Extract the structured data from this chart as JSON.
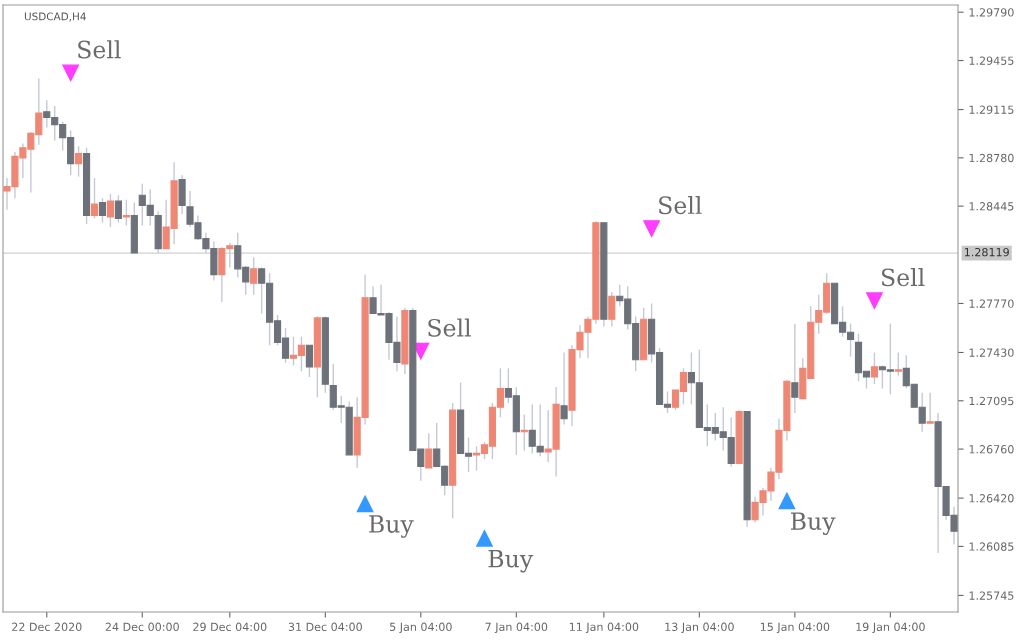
{
  "chart_data": {
    "type": "candlestick",
    "title": "USDCAD,H4",
    "categories": [
      null,
      null,
      null,
      null,
      null,
      "22 Dec 2020",
      null,
      null,
      null,
      null,
      null,
      null,
      null,
      null,
      null,
      null,
      null,
      "24 Dec 00:00",
      null,
      null,
      null,
      null,
      null,
      null,
      null,
      null,
      null,
      null,
      "29 Dec 04:00",
      null,
      null,
      null,
      null,
      null,
      null,
      null,
      null,
      null,
      null,
      null,
      "31 Dec 04:00",
      null,
      null,
      null,
      null,
      null,
      null,
      null,
      null,
      null,
      null,
      null,
      "5 Jan 04:00",
      null,
      null,
      null,
      null,
      null,
      null,
      null,
      null,
      null,
      null,
      null,
      "7 Jan 04:00",
      null,
      null,
      null,
      null,
      null,
      null,
      null,
      null,
      null,
      null,
      "11 Jan 04:00",
      null,
      null,
      null,
      null,
      null,
      null,
      null,
      null,
      null,
      null,
      null,
      "13 Jan 04:00",
      null,
      null,
      null,
      null,
      null,
      null,
      null,
      null,
      null,
      null,
      null,
      "15 Jan 04:00",
      null,
      null,
      null,
      null,
      null,
      null,
      null,
      null,
      null,
      null,
      null,
      "19 Jan 04:00",
      null,
      null,
      null,
      null,
      null,
      null,
      null,
      null
    ],
    "ohlc": [
      [
        1.2855,
        1.2864,
        1.2842,
        1.2858
      ],
      [
        1.2858,
        1.2882,
        1.285,
        1.2879
      ],
      [
        1.2878,
        1.2888,
        1.2864,
        1.2885
      ],
      [
        1.2884,
        1.2896,
        1.2854,
        1.2895
      ],
      [
        1.2894,
        1.2933,
        1.2887,
        1.2909
      ],
      [
        1.291,
        1.2918,
        1.2899,
        1.2906
      ],
      [
        1.2906,
        1.2914,
        1.289,
        1.2901
      ],
      [
        1.2901,
        1.2903,
        1.2883,
        1.2892
      ],
      [
        1.2892,
        1.2897,
        1.2866,
        1.2874
      ],
      [
        1.2874,
        1.2886,
        1.2865,
        1.2881
      ],
      [
        1.2881,
        1.2885,
        1.2832,
        1.2838
      ],
      [
        1.2838,
        1.2864,
        1.2836,
        1.2846
      ],
      [
        1.2847,
        1.285,
        1.2833,
        1.2838
      ],
      [
        1.2837,
        1.2853,
        1.283,
        1.2848
      ],
      [
        1.2848,
        1.2852,
        1.2833,
        1.2836
      ],
      [
        1.2837,
        1.2849,
        1.2831,
        1.2838
      ],
      [
        1.2838,
        1.2847,
        1.2812,
        1.2812
      ],
      [
        1.2852,
        1.286,
        1.2831,
        1.2845
      ],
      [
        1.2845,
        1.2856,
        1.2831,
        1.2838
      ],
      [
        1.2838,
        1.2841,
        1.2812,
        1.2815
      ],
      [
        1.2815,
        1.2849,
        1.2815,
        1.283
      ],
      [
        1.2829,
        1.2875,
        1.2818,
        1.2862
      ],
      [
        1.2863,
        1.2866,
        1.2839,
        1.2845
      ],
      [
        1.2844,
        1.2855,
        1.283,
        1.2832
      ],
      [
        1.2833,
        1.2838,
        1.2821,
        1.2822
      ],
      [
        1.2822,
        1.2826,
        1.2812,
        1.2815
      ],
      [
        1.2815,
        1.282,
        1.2793,
        1.2797
      ],
      [
        1.2797,
        1.2816,
        1.2778,
        1.2815
      ],
      [
        1.2815,
        1.2819,
        1.2802,
        1.2817
      ],
      [
        1.2817,
        1.2826,
        1.2795,
        1.2801
      ],
      [
        1.2802,
        1.2803,
        1.2783,
        1.2792
      ],
      [
        1.2791,
        1.2809,
        1.2783,
        1.2801
      ],
      [
        1.2801,
        1.2802,
        1.277,
        1.2791
      ],
      [
        1.2791,
        1.2798,
        1.2748,
        1.2764
      ],
      [
        1.2765,
        1.2769,
        1.2748,
        1.275
      ],
      [
        1.2753,
        1.276,
        1.2736,
        1.2739
      ],
      [
        1.2739,
        1.2754,
        1.2734,
        1.2741
      ],
      [
        1.2741,
        1.2754,
        1.273,
        1.2748
      ],
      [
        1.2748,
        1.2748,
        1.2726,
        1.2733
      ],
      [
        1.2733,
        1.2768,
        1.2712,
        1.2767
      ],
      [
        1.2767,
        1.2768,
        1.2715,
        1.2721
      ],
      [
        1.272,
        1.2735,
        1.2703,
        1.2705
      ],
      [
        1.2706,
        1.2713,
        1.2694,
        1.2705
      ],
      [
        1.2705,
        1.2709,
        1.2672,
        1.2672
      ],
      [
        1.2672,
        1.2712,
        1.2663,
        1.2698
      ],
      [
        1.2698,
        1.2797,
        1.2693,
        1.2781
      ],
      [
        1.2781,
        1.2789,
        1.277,
        1.277
      ],
      [
        1.277,
        1.279,
        1.2769,
        1.2769
      ],
      [
        1.277,
        1.2771,
        1.2738,
        1.275
      ],
      [
        1.275,
        1.2768,
        1.273,
        1.2736
      ],
      [
        1.2735,
        1.2774,
        1.2728,
        1.2772
      ],
      [
        1.2772,
        1.2774,
        1.2675,
        1.2675
      ],
      [
        1.2676,
        1.2676,
        1.2654,
        1.2664
      ],
      [
        1.2663,
        1.2687,
        1.2663,
        1.2676
      ],
      [
        1.2676,
        1.2694,
        1.2664,
        1.2664
      ],
      [
        1.2664,
        1.2665,
        1.2644,
        1.2651
      ],
      [
        1.2651,
        1.2708,
        1.2628,
        1.2703
      ],
      [
        1.2703,
        1.2722,
        1.2673,
        1.2673
      ],
      [
        1.2673,
        1.2684,
        1.266,
        1.2671
      ],
      [
        1.2672,
        1.2678,
        1.2661,
        1.2673
      ],
      [
        1.2673,
        1.2681,
        1.2669,
        1.2679
      ],
      [
        1.2678,
        1.2708,
        1.2669,
        1.2705
      ],
      [
        1.2705,
        1.2732,
        1.2698,
        1.2718
      ],
      [
        1.2718,
        1.2732,
        1.2708,
        1.2712
      ],
      [
        1.2713,
        1.2719,
        1.2672,
        1.2688
      ],
      [
        1.2688,
        1.27,
        1.2675,
        1.2689
      ],
      [
        1.2689,
        1.2707,
        1.2673,
        1.2678
      ],
      [
        1.2678,
        1.2707,
        1.2671,
        1.2674
      ],
      [
        1.2674,
        1.2703,
        1.2667,
        1.2676
      ],
      [
        1.2676,
        1.2719,
        1.2657,
        1.2707
      ],
      [
        1.2706,
        1.2743,
        1.2693,
        1.2697
      ],
      [
        1.2703,
        1.2748,
        1.2692,
        1.2745
      ],
      [
        1.2745,
        1.2762,
        1.2739,
        1.2757
      ],
      [
        1.2757,
        1.2768,
        1.2739,
        1.2766
      ],
      [
        1.2766,
        1.2834,
        1.2763,
        1.2833
      ],
      [
        1.2833,
        1.2833,
        1.2761,
        1.2766
      ],
      [
        1.2766,
        1.2785,
        1.2761,
        1.2782
      ],
      [
        1.2782,
        1.279,
        1.2775,
        1.2779
      ],
      [
        1.278,
        1.2789,
        1.2759,
        1.2763
      ],
      [
        1.2763,
        1.2768,
        1.273,
        1.2738
      ],
      [
        1.2738,
        1.2774,
        1.2738,
        1.2766
      ],
      [
        1.2766,
        1.2777,
        1.2736,
        1.2742
      ],
      [
        1.2743,
        1.2746,
        1.2707,
        1.2707
      ],
      [
        1.2707,
        1.2716,
        1.2701,
        1.2705
      ],
      [
        1.2705,
        1.2717,
        1.2703,
        1.2717
      ],
      [
        1.2716,
        1.2732,
        1.2707,
        1.2729
      ],
      [
        1.2729,
        1.2743,
        1.2707,
        1.2722
      ],
      [
        1.2722,
        1.2745,
        1.2691,
        1.2691
      ],
      [
        1.2691,
        1.2707,
        1.2678,
        1.2689
      ],
      [
        1.2691,
        1.2701,
        1.2682,
        1.2687
      ],
      [
        1.2688,
        1.2705,
        1.2675,
        1.2684
      ],
      [
        1.2684,
        1.2698,
        1.2664,
        1.2666
      ],
      [
        1.2666,
        1.2703,
        1.2666,
        1.2702
      ],
      [
        1.2702,
        1.2702,
        1.2622,
        1.2627
      ],
      [
        1.2627,
        1.2643,
        1.2625,
        1.2639
      ],
      [
        1.2639,
        1.2649,
        1.263,
        1.2647
      ],
      [
        1.2647,
        1.2663,
        1.264,
        1.266
      ],
      [
        1.266,
        1.2697,
        1.2655,
        1.2689
      ],
      [
        1.2689,
        1.2724,
        1.2682,
        1.2723
      ],
      [
        1.2722,
        1.2763,
        1.2701,
        1.2712
      ],
      [
        1.2711,
        1.2739,
        1.2711,
        1.2732
      ],
      [
        1.2725,
        1.2775,
        1.2725,
        1.2764
      ],
      [
        1.2764,
        1.2783,
        1.2756,
        1.2772
      ],
      [
        1.2771,
        1.2798,
        1.277,
        1.2791
      ],
      [
        1.2791,
        1.2791,
        1.2763,
        1.2763
      ],
      [
        1.2764,
        1.2775,
        1.2754,
        1.2757
      ],
      [
        1.2757,
        1.2763,
        1.274,
        1.2752
      ],
      [
        1.275,
        1.2756,
        1.2723,
        1.2729
      ],
      [
        1.273,
        1.273,
        1.2718,
        1.2726
      ],
      [
        1.2726,
        1.2743,
        1.2721,
        1.2733
      ],
      [
        1.2733,
        1.2734,
        1.2718,
        1.2731
      ],
      [
        1.2731,
        1.2763,
        1.2714,
        1.273
      ],
      [
        1.273,
        1.2743,
        1.2727,
        1.2731
      ],
      [
        1.2732,
        1.2741,
        1.2718,
        1.272
      ],
      [
        1.2721,
        1.2721,
        1.2705,
        1.2705
      ],
      [
        1.2705,
        1.2715,
        1.2688,
        1.2694
      ],
      [
        1.2694,
        1.2715,
        1.2694,
        1.2695
      ],
      [
        1.2695,
        1.2701,
        1.2604,
        1.265
      ],
      [
        1.265,
        1.265,
        1.2627,
        1.263
      ],
      [
        1.263,
        1.2636,
        1.261,
        1.2619
      ]
    ],
    "colors": [
      "#ef8775",
      "#ef8775",
      "#ef8775",
      "#ef8775",
      "#ef8775",
      "#6c717a",
      "#6c717a",
      "#6c717a",
      "#6c717a",
      "#ef8775",
      "#6c717a",
      "#ef8775",
      "#6c717a",
      "#ef8775",
      "#6c717a",
      "#ef8775",
      "#6c717a",
      "#6c717a",
      "#6c717a",
      "#6c717a",
      "#ef8775",
      "#ef8775",
      "#6c717a",
      "#6c717a",
      "#6c717a",
      "#6c717a",
      "#6c717a",
      "#ef8775",
      "#ef8775",
      "#6c717a",
      "#6c717a",
      "#ef8775",
      "#6c717a",
      "#6c717a",
      "#6c717a",
      "#6c717a",
      "#ef8775",
      "#ef8775",
      "#6c717a",
      "#ef8775",
      "#6c717a",
      "#6c717a",
      "#6c717a",
      "#6c717a",
      "#ef8775",
      "#ef8775",
      "#6c717a",
      "#6c717a",
      "#6c717a",
      "#6c717a",
      "#ef8775",
      "#6c717a",
      "#6c717a",
      "#ef8775",
      "#6c717a",
      "#6c717a",
      "#ef8775",
      "#6c717a",
      "#6c717a",
      "#ef8775",
      "#ef8775",
      "#ef8775",
      "#ef8775",
      "#6c717a",
      "#6c717a",
      "#ef8775",
      "#6c717a",
      "#6c717a",
      "#ef8775",
      "#ef8775",
      "#6c717a",
      "#ef8775",
      "#ef8775",
      "#ef8775",
      "#ef8775",
      "#6c717a",
      "#ef8775",
      "#6c717a",
      "#6c717a",
      "#6c717a",
      "#ef8775",
      "#6c717a",
      "#6c717a",
      "#6c717a",
      "#ef8775",
      "#ef8775",
      "#6c717a",
      "#6c717a",
      "#6c717a",
      "#6c717a",
      "#6c717a",
      "#6c717a",
      "#ef8775",
      "#6c717a",
      "#ef8775",
      "#ef8775",
      "#ef8775",
      "#ef8775",
      "#ef8775",
      "#6c717a",
      "#ef8775",
      "#ef8775",
      "#ef8775",
      "#ef8775",
      "#6c717a",
      "#6c717a",
      "#6c717a",
      "#6c717a",
      "#6c717a",
      "#ef8775",
      "#6c717a",
      "#6c717a",
      "#ef8775",
      "#6c717a",
      "#6c717a",
      "#6c717a",
      "#ef8775",
      "#6c717a",
      "#6c717a",
      "#6c717a"
    ],
    "series": [
      {
        "name": "Sell",
        "type": "scatter",
        "color": "#ff3cff",
        "marker": "triangle",
        "values": [
          null,
          null,
          null,
          null,
          null,
          null,
          null,
          null,
          1.2937,
          null,
          null,
          null,
          null,
          null,
          null,
          null,
          null,
          null,
          null,
          null,
          null,
          null,
          null,
          null,
          null,
          null,
          null,
          null,
          null,
          null,
          null,
          null,
          null,
          null,
          null,
          null,
          null,
          null,
          null,
          null,
          null,
          null,
          null,
          null,
          null,
          null,
          null,
          null,
          null,
          null,
          null,
          null,
          1.2744,
          null,
          null,
          null,
          null,
          null,
          null,
          null,
          null,
          null,
          null,
          null,
          null,
          null,
          null,
          null,
          null,
          null,
          null,
          null,
          null,
          null,
          null,
          null,
          null,
          null,
          null,
          null,
          null,
          1.2829,
          null,
          null,
          null,
          null,
          null,
          null,
          null,
          null,
          null,
          null,
          null,
          null,
          null,
          null,
          null,
          null,
          null,
          null,
          null,
          null,
          null,
          null,
          null,
          null,
          null,
          null,
          null,
          1.2779,
          null,
          null,
          null,
          null,
          null,
          null,
          null,
          null,
          null,
          null
        ]
      },
      {
        "name": "Buy",
        "type": "scatter",
        "color": "#3399ff",
        "marker": "triangle",
        "values": [
          null,
          null,
          null,
          null,
          null,
          null,
          null,
          null,
          null,
          null,
          null,
          null,
          null,
          null,
          null,
          null,
          null,
          null,
          null,
          null,
          null,
          null,
          null,
          null,
          null,
          null,
          null,
          null,
          null,
          null,
          null,
          null,
          null,
          null,
          null,
          null,
          null,
          null,
          null,
          null,
          null,
          null,
          null,
          null,
          null,
          1.2638,
          null,
          null,
          null,
          null,
          null,
          null,
          null,
          null,
          null,
          null,
          null,
          null,
          null,
          null,
          1.2614,
          null,
          null,
          null,
          null,
          null,
          null,
          null,
          null,
          null,
          null,
          null,
          null,
          null,
          null,
          null,
          null,
          null,
          null,
          null,
          null,
          null,
          null,
          null,
          null,
          null,
          null,
          null,
          null,
          null,
          null,
          null,
          null,
          null,
          null,
          null,
          null,
          null,
          1.264,
          null,
          null,
          null,
          null,
          null,
          null,
          null,
          null,
          null,
          null,
          null,
          null,
          null,
          null,
          null,
          null,
          null,
          null,
          null,
          null,
          null
        ]
      }
    ],
    "ylim": [
      1.2563,
      1.2984
    ],
    "yticks": [
      {
        "value": 1.2979,
        "label": "1.29790"
      },
      {
        "value": 1.29455,
        "label": "1.29455"
      },
      {
        "value": 1.29115,
        "label": "1.29115"
      },
      {
        "value": 1.2878,
        "label": "1.28780"
      },
      {
        "value": 1.28445,
        "label": "1.28445"
      },
      {
        "value": 1.2777,
        "label": "1.27770"
      },
      {
        "value": 1.2743,
        "label": "1.27430"
      },
      {
        "value": 1.27095,
        "label": "1.27095"
      },
      {
        "value": 1.2676,
        "label": "1.26760"
      },
      {
        "value": 1.2642,
        "label": "1.26420"
      },
      {
        "value": 1.26085,
        "label": "1.26085"
      },
      {
        "value": 1.25745,
        "label": "1.25745"
      }
    ],
    "ref_lines": [
      {
        "axis": "y",
        "value": 1.28119,
        "label": "1.28119",
        "color": "#d0d0d0"
      }
    ]
  }
}
